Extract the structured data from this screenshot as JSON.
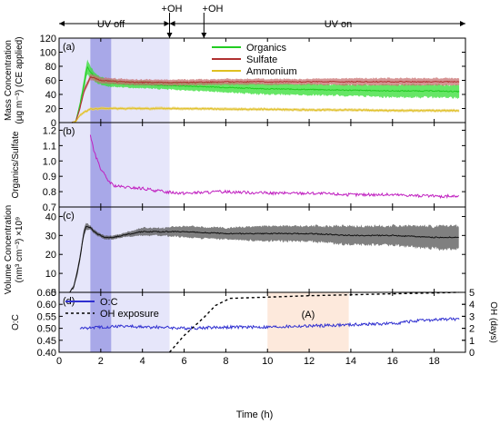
{
  "top_annotations": {
    "uv_off": "UV off",
    "uv_on": "UV on",
    "oh1": "+OH",
    "oh2": "+OH"
  },
  "shading": {
    "uv_off_range": [
      0,
      5.3
    ],
    "injection_range": [
      1.5,
      2.5
    ],
    "region_a_range": [
      10,
      13.9
    ],
    "region_a_label": "(A)",
    "colors": {
      "uv_off": "#e6e6fa",
      "injection": "#a8a8e8",
      "region_a": "#fde9dc"
    }
  },
  "oh_markers": [
    5.3,
    6.95
  ],
  "xaxis": {
    "label": "Time (h)",
    "range": [
      0,
      19.5
    ],
    "ticks": [
      0,
      2,
      4,
      6,
      8,
      10,
      12,
      14,
      16,
      18
    ]
  },
  "chart_data": [
    {
      "type": "line",
      "panel": "(a)",
      "ylabel": "Mass Concentration",
      "ylabel2": "(µg m⁻³) (CE applied)",
      "ylim": [
        0,
        120
      ],
      "yticks": [
        0,
        20,
        40,
        60,
        80,
        100,
        120
      ],
      "legend_placement": "top-right",
      "series": [
        {
          "name": "Organics",
          "color": "#22cc22",
          "band_color": "#33dd33",
          "x": [
            0.6,
            0.8,
            1.0,
            1.2,
            1.35,
            1.5,
            1.8,
            2.2,
            3,
            4,
            6,
            8,
            10,
            12,
            14,
            16,
            18,
            19.2
          ],
          "y": [
            0,
            2,
            25,
            55,
            80,
            72,
            62,
            57,
            55,
            54,
            52,
            50,
            48,
            47,
            46,
            45,
            45,
            44
          ],
          "err": [
            0,
            1,
            5,
            8,
            10,
            8,
            6,
            5,
            5,
            5,
            6,
            7,
            8,
            8,
            8,
            9,
            9,
            9
          ]
        },
        {
          "name": "Sulfate",
          "color": "#b03030",
          "band_color": "#c87070",
          "x": [
            0.6,
            0.8,
            1.0,
            1.2,
            1.5,
            2,
            3,
            4,
            6,
            8,
            10,
            12,
            14,
            16,
            18,
            19.2
          ],
          "y": [
            0,
            2,
            20,
            45,
            65,
            60,
            58,
            57,
            57,
            58,
            58,
            58,
            58,
            58,
            58,
            58
          ],
          "err": [
            0,
            1,
            3,
            4,
            4,
            4,
            4,
            4,
            4,
            4,
            4,
            4,
            5,
            5,
            5,
            5
          ]
        },
        {
          "name": "Ammonium",
          "color": "#e0c020",
          "band_color": "#e8d070",
          "x": [
            0.6,
            0.8,
            1.0,
            1.2,
            1.5,
            2,
            3,
            4,
            6,
            8,
            10,
            12,
            14,
            16,
            18,
            19.2
          ],
          "y": [
            0,
            2,
            10,
            15,
            19,
            20,
            20,
            20,
            20,
            19,
            19,
            18,
            18,
            17,
            17,
            17
          ],
          "err": [
            0,
            1,
            2,
            2,
            2,
            2,
            2,
            2,
            2,
            2,
            2,
            2,
            2,
            2,
            2,
            2
          ]
        }
      ]
    },
    {
      "type": "line",
      "panel": "(b)",
      "ylabel": "Organics/Sulfate",
      "ylim": [
        0.7,
        1.25
      ],
      "yticks": [
        0.7,
        0.8,
        0.9,
        1.0,
        1.1,
        1.2
      ],
      "series": [
        {
          "name": "",
          "color": "#c020c0",
          "x": [
            1.5,
            1.7,
            2.0,
            2.3,
            2.6,
            3.0,
            4,
            5,
            6,
            8,
            10,
            12,
            14,
            16,
            18,
            19.2
          ],
          "y": [
            1.17,
            1.05,
            0.95,
            0.88,
            0.84,
            0.83,
            0.82,
            0.8,
            0.79,
            0.8,
            0.79,
            0.79,
            0.78,
            0.78,
            0.77,
            0.77
          ]
        }
      ]
    },
    {
      "type": "line",
      "panel": "(c)",
      "ylabel": "Volume Concentration",
      "ylabel2": "(nm³ cm⁻³) ×10⁹",
      "ylim": [
        0,
        45
      ],
      "yticks": [
        0,
        10,
        20,
        30,
        40
      ],
      "series": [
        {
          "name": "",
          "color": "#111111",
          "band_color": "#555555",
          "x": [
            0.5,
            0.7,
            0.9,
            1.0,
            1.1,
            1.2,
            1.3,
            1.5,
            1.8,
            2.2,
            2.6,
            3,
            4,
            5,
            6,
            8,
            10,
            12,
            14,
            16,
            18,
            19.2
          ],
          "y": [
            0,
            3,
            12,
            18,
            25,
            32,
            35,
            34,
            31,
            29,
            29,
            30,
            32,
            32,
            32,
            31,
            31,
            31,
            30,
            30,
            29,
            29
          ],
          "err": [
            0,
            1,
            2,
            2,
            2,
            2,
            2,
            1,
            1,
            1,
            1,
            1,
            2,
            2,
            3,
            3,
            4,
            4,
            5,
            5,
            6,
            6
          ]
        }
      ]
    },
    {
      "type": "line",
      "panel": "(d)",
      "ylabel": "O:C",
      "ylabel_right": "OH (days)",
      "ylim": [
        0.4,
        0.65
      ],
      "yticks": [
        0.4,
        0.45,
        0.5,
        0.55,
        0.6,
        0.65
      ],
      "ylim_right": [
        0,
        5
      ],
      "yticks_right": [
        0,
        1,
        2,
        3,
        4,
        5
      ],
      "legend_placement": "top-left",
      "series": [
        {
          "name": "O:C",
          "color": "#3030d0",
          "axis": "left",
          "x": [
            1.0,
            2,
            3,
            4,
            5,
            6,
            8,
            10,
            12,
            14,
            16,
            17,
            18,
            18.8,
            19.2
          ],
          "y": [
            0.5,
            0.505,
            0.51,
            0.505,
            0.505,
            0.5,
            0.505,
            0.505,
            0.51,
            0.515,
            0.52,
            0.53,
            0.535,
            0.54,
            0.535
          ]
        },
        {
          "name": "OH exposure",
          "color": "#000000",
          "axis": "right",
          "style": "dashed",
          "x": [
            5.3,
            6.0,
            6.95,
            7.5,
            8.2,
            10,
            12,
            14,
            16,
            18,
            19.2
          ],
          "y": [
            0,
            1.4,
            2.9,
            3.9,
            4.5,
            4.6,
            4.72,
            4.8,
            4.88,
            4.95,
            5.0
          ]
        }
      ]
    }
  ]
}
